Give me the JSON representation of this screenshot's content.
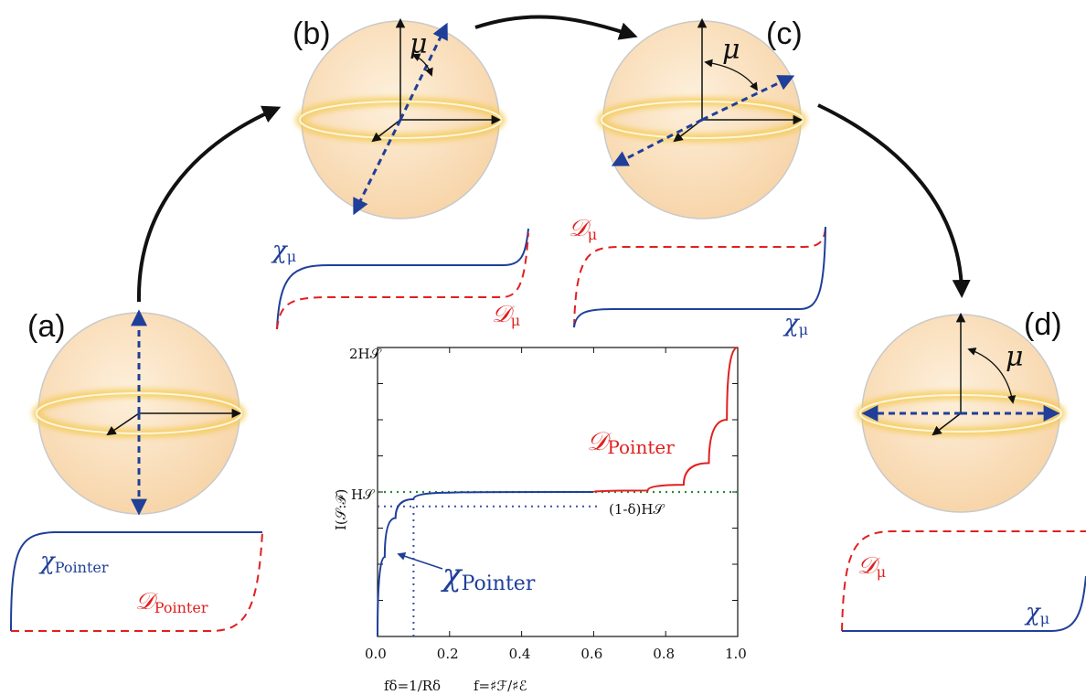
{
  "panels": {
    "a": "(a)",
    "b": "(b)",
    "c": "(c)",
    "d": "(d)"
  },
  "angle_symbol": "μ",
  "labels": {
    "chi_mu": "χ",
    "chi_mu_sub": "μ",
    "D_mu": "𝒟",
    "D_mu_sub": "μ",
    "chi_pointer": "χ",
    "chi_pointer_sub": "Pointer",
    "D_pointer": "𝒟",
    "D_pointer_sub": "Pointer"
  },
  "colors": {
    "blue": "#1f3f99",
    "red": "#e0201f",
    "green_dotted": "#2a8a3a",
    "blue_dotted": "#3a4fb0",
    "sphere_fill": "#fbe2c6",
    "ring": "#f3c84a"
  },
  "chart_data": {
    "type": "line",
    "xlabel": "f=♯ℱ/♯ℰ",
    "ylabel": "I(𝒮:ℱ)",
    "xlim": [
      0,
      1
    ],
    "ylim": [
      0,
      2
    ],
    "x_ticks": [
      "0.0",
      "0.2",
      "0.4",
      "0.6",
      "0.8",
      "1.0"
    ],
    "y_ticks": [
      "H𝒮",
      "2H𝒮"
    ],
    "annotations": {
      "delta_level": "(1-δ)H𝒮",
      "f_delta": "fδ=1/Rδ"
    },
    "series": [
      {
        "name": "χPointer",
        "points": [
          [
            0,
            0
          ],
          [
            0.02,
            0.55
          ],
          [
            0.05,
            0.82
          ],
          [
            0.1,
            0.95
          ],
          [
            0.2,
            0.995
          ],
          [
            0.5,
            1.0
          ],
          [
            0.6,
            1.0
          ]
        ]
      },
      {
        "name": "𝒟Pointer",
        "points": [
          [
            0.6,
            1.0
          ],
          [
            0.75,
            1.01
          ],
          [
            0.85,
            1.05
          ],
          [
            0.92,
            1.2
          ],
          [
            0.97,
            1.5
          ],
          [
            1.0,
            2.0
          ]
        ]
      }
    ],
    "reference_lines": {
      "H": 1.0,
      "one_minus_delta_H": 0.9,
      "f_delta": 0.1
    }
  }
}
